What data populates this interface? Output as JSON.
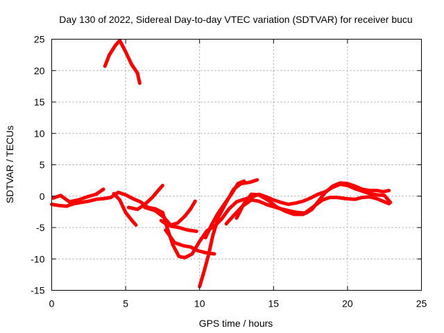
{
  "chart_data": {
    "type": "line",
    "title": "Day 130 of 2022, Sidereal Day-to-day VTEC variation (SDTVAR) for receiver bucu",
    "xlabel": "GPS time / hours",
    "ylabel": "SDTVAR / TECUs",
    "xlim": [
      0,
      25
    ],
    "ylim": [
      -15,
      25
    ],
    "xticks": [
      0,
      5,
      10,
      15,
      20,
      25
    ],
    "yticks": [
      -15,
      -10,
      -5,
      0,
      5,
      10,
      15,
      20,
      25
    ],
    "grid": true,
    "legend": "none",
    "color": "#ff0000",
    "series": [
      {
        "name": "track-1",
        "points": [
          [
            0.0,
            -1.3
          ],
          [
            0.5,
            -1.5
          ],
          [
            1.0,
            -1.6
          ],
          [
            1.5,
            -1.2
          ],
          [
            2.0,
            -1.0
          ],
          [
            2.5,
            -0.8
          ],
          [
            3.0,
            -0.5
          ],
          [
            3.5,
            -0.4
          ],
          [
            4.0,
            -0.2
          ],
          [
            4.5,
            0.6
          ],
          [
            5.0,
            0.2
          ],
          [
            5.5,
            -0.4
          ],
          [
            6.0,
            -0.9
          ],
          [
            6.5,
            -1.8
          ],
          [
            7.0,
            -2.0
          ],
          [
            7.5,
            -2.6
          ],
          [
            7.8,
            -5.0
          ],
          [
            8.2,
            -7.8
          ],
          [
            8.6,
            -9.6
          ],
          [
            9.0,
            -9.8
          ],
          [
            9.5,
            -9.2
          ],
          [
            10.0,
            -7.2
          ],
          [
            10.5,
            -5.5
          ],
          [
            11.0,
            -4.8
          ],
          [
            11.5,
            -3.6
          ],
          [
            12.0,
            -2.0
          ],
          [
            12.5,
            -0.9
          ],
          [
            13.0,
            -0.5
          ],
          [
            13.5,
            -0.2
          ],
          [
            14.0,
            0.3
          ],
          [
            14.5,
            -0.1
          ],
          [
            15.0,
            -0.6
          ],
          [
            15.5,
            -1.0
          ],
          [
            16.0,
            -1.3
          ],
          [
            16.5,
            -1.1
          ],
          [
            17.0,
            -0.8
          ],
          [
            17.5,
            -0.3
          ],
          [
            18.0,
            0.3
          ],
          [
            18.5,
            0.7
          ],
          [
            19.0,
            1.4
          ],
          [
            19.5,
            1.9
          ],
          [
            20.0,
            1.7
          ],
          [
            20.5,
            1.2
          ],
          [
            21.0,
            0.8
          ],
          [
            21.5,
            0.4
          ],
          [
            22.0,
            0.2
          ],
          [
            22.5,
            0.1
          ],
          [
            22.9,
            -1.0
          ]
        ]
      },
      {
        "name": "track-2",
        "points": [
          [
            0.1,
            -0.3
          ],
          [
            0.6,
            0.1
          ],
          [
            1.2,
            -0.9
          ],
          [
            1.8,
            -0.6
          ],
          [
            2.4,
            -0.1
          ],
          [
            3.0,
            0.3
          ],
          [
            3.5,
            1.1
          ]
        ]
      },
      {
        "name": "track-3",
        "points": [
          [
            3.6,
            20.7
          ],
          [
            3.9,
            22.5
          ],
          [
            4.3,
            24.0
          ],
          [
            4.6,
            24.8
          ],
          [
            5.0,
            23.0
          ],
          [
            5.4,
            21.0
          ],
          [
            5.8,
            19.6
          ],
          [
            5.95,
            18.0
          ]
        ]
      },
      {
        "name": "track-4",
        "points": [
          [
            4.2,
            0.4
          ],
          [
            4.6,
            -0.6
          ],
          [
            5.0,
            -2.6
          ],
          [
            5.4,
            -3.8
          ],
          [
            5.7,
            -4.6
          ]
        ]
      },
      {
        "name": "track-5",
        "points": [
          [
            5.2,
            -1.8
          ],
          [
            5.8,
            -2.1
          ],
          [
            6.3,
            -1.3
          ],
          [
            6.8,
            -0.2
          ],
          [
            7.2,
            0.9
          ],
          [
            7.5,
            1.7
          ]
        ]
      },
      {
        "name": "track-6",
        "points": [
          [
            6.3,
            -1.8
          ],
          [
            7.0,
            -2.3
          ],
          [
            7.6,
            -3.4
          ],
          [
            8.1,
            -4.8
          ],
          [
            8.6,
            -5.0
          ],
          [
            9.2,
            -5.4
          ],
          [
            9.8,
            -5.6
          ]
        ]
      },
      {
        "name": "track-7",
        "points": [
          [
            7.4,
            -3.9
          ],
          [
            7.9,
            -4.7
          ],
          [
            8.5,
            -4.3
          ],
          [
            9.0,
            -3.2
          ],
          [
            9.4,
            -2.0
          ],
          [
            9.7,
            -0.8
          ]
        ]
      },
      {
        "name": "track-8",
        "points": [
          [
            7.7,
            -5.4
          ],
          [
            8.3,
            -7.4
          ],
          [
            8.9,
            -7.9
          ],
          [
            9.4,
            -8.1
          ],
          [
            9.9,
            -8.7
          ],
          [
            10.4,
            -9.0
          ],
          [
            11.0,
            -9.2
          ]
        ]
      },
      {
        "name": "track-9",
        "points": [
          [
            10.0,
            -14.4
          ],
          [
            10.3,
            -12.0
          ],
          [
            10.6,
            -9.4
          ],
          [
            10.9,
            -6.2
          ],
          [
            11.3,
            -3.2
          ],
          [
            11.8,
            -1.0
          ],
          [
            12.3,
            1.1
          ],
          [
            12.8,
            2.0
          ],
          [
            13.4,
            2.2
          ],
          [
            13.9,
            2.6
          ]
        ]
      },
      {
        "name": "track-10",
        "points": [
          [
            10.4,
            -6.6
          ],
          [
            10.8,
            -4.6
          ],
          [
            11.2,
            -2.9
          ],
          [
            11.7,
            -1.2
          ],
          [
            12.2,
            0.5
          ],
          [
            12.6,
            2.0
          ],
          [
            13.0,
            2.4
          ]
        ]
      },
      {
        "name": "track-11",
        "points": [
          [
            11.8,
            -4.4
          ],
          [
            12.3,
            -3.1
          ],
          [
            12.9,
            -1.6
          ],
          [
            13.5,
            -0.6
          ],
          [
            14.0,
            -0.8
          ],
          [
            14.6,
            -1.4
          ],
          [
            15.3,
            -1.9
          ],
          [
            16.0,
            -2.3
          ],
          [
            16.6,
            -2.6
          ],
          [
            17.2,
            -2.7
          ],
          [
            17.6,
            -2.1
          ],
          [
            18.0,
            -0.9
          ],
          [
            18.5,
            0.6
          ],
          [
            19.0,
            1.6
          ],
          [
            19.5,
            2.1
          ],
          [
            20.0,
            2.0
          ],
          [
            20.5,
            1.6
          ],
          [
            21.0,
            1.1
          ],
          [
            21.5,
            0.9
          ],
          [
            22.0,
            0.9
          ],
          [
            22.4,
            0.7
          ],
          [
            22.8,
            0.9
          ]
        ]
      },
      {
        "name": "track-12",
        "points": [
          [
            12.5,
            -3.5
          ],
          [
            13.0,
            -1.2
          ],
          [
            13.5,
            0.3
          ],
          [
            14.0,
            0.2
          ],
          [
            14.6,
            -0.6
          ],
          [
            15.2,
            -1.7
          ],
          [
            15.8,
            -2.4
          ],
          [
            16.4,
            -2.9
          ],
          [
            17.0,
            -2.9
          ],
          [
            17.4,
            -2.2
          ],
          [
            17.8,
            -1.5
          ],
          [
            18.3,
            -0.6
          ],
          [
            18.8,
            -0.2
          ],
          [
            19.3,
            -0.2
          ],
          [
            19.9,
            -0.4
          ],
          [
            20.5,
            -0.5
          ],
          [
            21.0,
            -0.2
          ],
          [
            21.5,
            -0.1
          ],
          [
            22.0,
            -0.4
          ],
          [
            22.5,
            -0.9
          ],
          [
            22.8,
            -1.2
          ]
        ]
      }
    ]
  }
}
